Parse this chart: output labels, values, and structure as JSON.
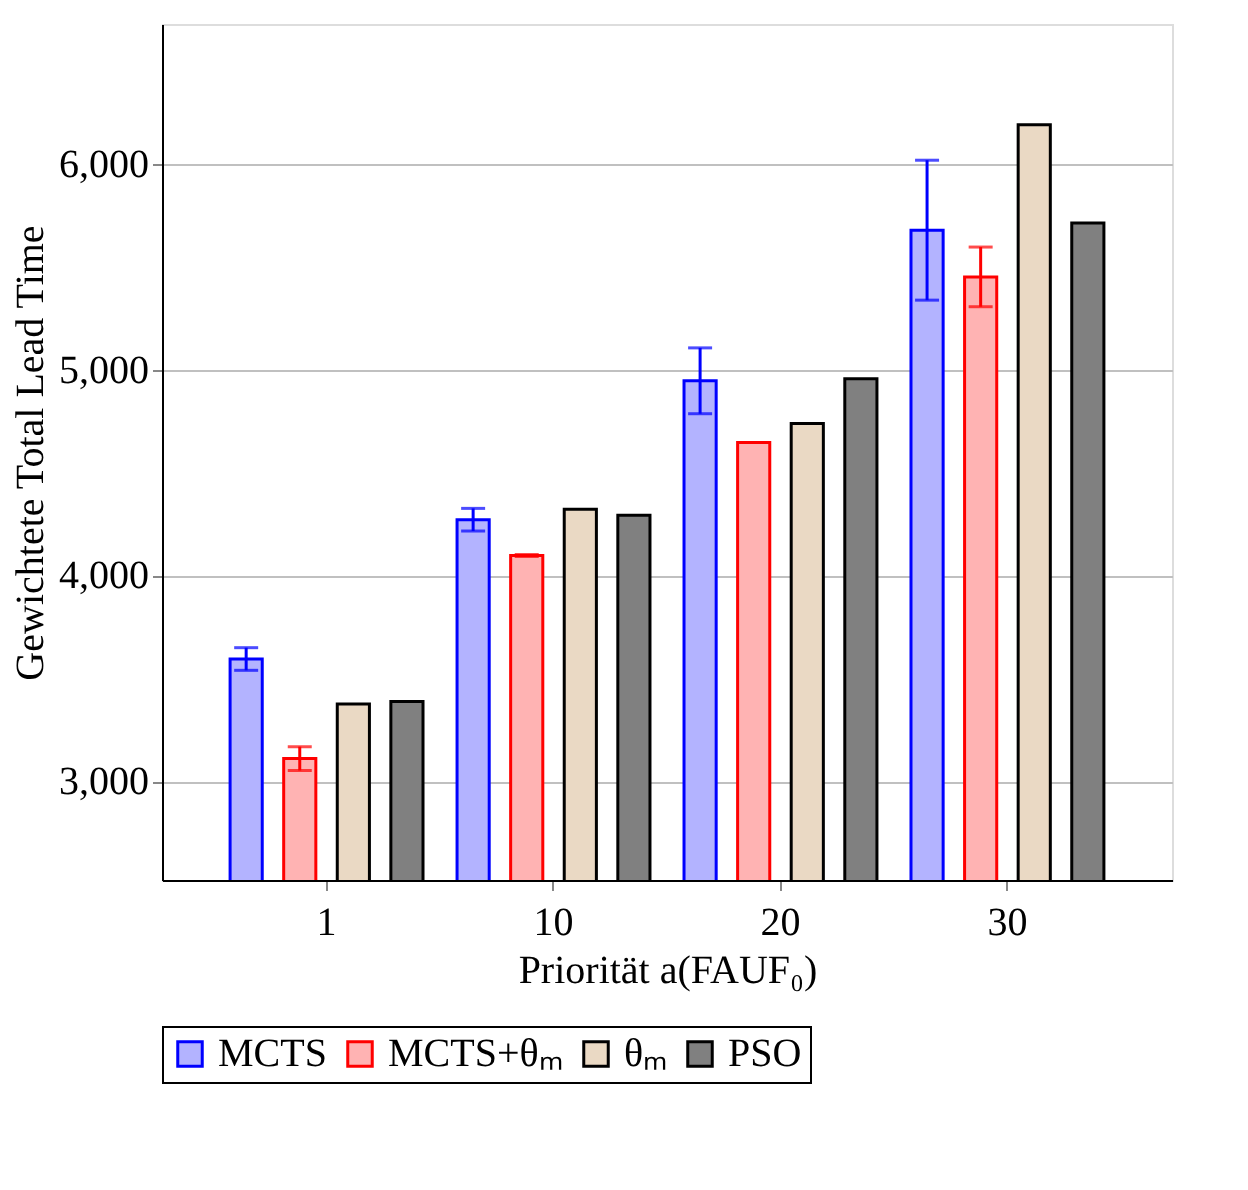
{
  "chart_data": {
    "type": "bar",
    "xlabel": "Priorität a(FAUF₀)",
    "ylabel": "Gewichtete Total Lead Time",
    "categories": [
      "1",
      "10",
      "20",
      "30"
    ],
    "series": [
      {
        "name": "MCTS",
        "color": "#b3b3ff",
        "values": [
          3594,
          4271,
          4946,
          5678
        ],
        "errors": [
          55,
          55,
          160,
          340
        ]
      },
      {
        "name": "MCTS+θₘ",
        "color": "#ffb3b3",
        "values": [
          3110,
          4097,
          4646,
          5451
        ],
        "errors": [
          58,
          5,
          null,
          145
        ]
      },
      {
        "name": "θₘ",
        "color": "#ead9c4",
        "values": [
          3375,
          4322,
          4739,
          6190
        ]
      },
      {
        "name": "PSO",
        "color": "#808080",
        "values": [
          3387,
          4293,
          4956,
          5713
        ]
      }
    ],
    "ylim": [
      2520,
      6680
    ],
    "yticks": [
      {
        "value": 3000,
        "label": "3,000"
      },
      {
        "value": 4000,
        "label": "4,000"
      },
      {
        "value": 5000,
        "label": "5,000"
      },
      {
        "value": 6000,
        "label": "6,000"
      }
    ],
    "grid": "y",
    "legend": "bottom"
  }
}
